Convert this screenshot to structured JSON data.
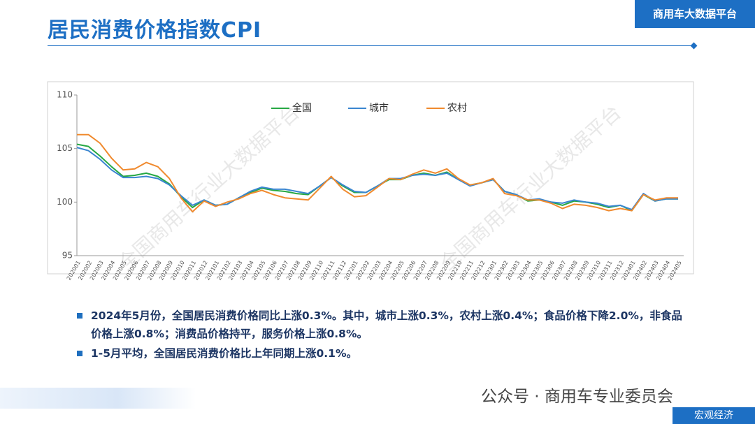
{
  "header": {
    "title": "居民消费价格指数CPI",
    "platform": "商用车大数据平台"
  },
  "watermark": "全国商用车行业大数据平台",
  "chart_data": {
    "type": "line",
    "categories": [
      "202001",
      "202002",
      "202003",
      "202004",
      "202005",
      "202006",
      "202007",
      "202008",
      "202009",
      "202010",
      "202011",
      "202012",
      "202101",
      "202102",
      "202103",
      "202104",
      "202105",
      "202106",
      "202107",
      "202108",
      "202109",
      "202110",
      "202111",
      "202112",
      "202201",
      "202202",
      "202203",
      "202204",
      "202205",
      "202206",
      "202207",
      "202208",
      "202209",
      "202210",
      "202211",
      "202212",
      "202301",
      "202302",
      "202303",
      "202304",
      "202305",
      "202306",
      "202307",
      "202308",
      "202309",
      "202310",
      "202311",
      "202312",
      "202401",
      "202402",
      "202403",
      "202404",
      "202405"
    ],
    "series": [
      {
        "name": "全国",
        "color": "#27a844",
        "values": [
          105.4,
          105.2,
          104.3,
          103.3,
          102.4,
          102.5,
          102.7,
          102.4,
          101.7,
          100.5,
          99.5,
          100.2,
          99.7,
          99.8,
          100.4,
          100.9,
          101.3,
          101.1,
          101.0,
          100.8,
          100.7,
          101.5,
          102.3,
          101.5,
          100.9,
          100.9,
          101.5,
          102.1,
          102.1,
          102.5,
          102.7,
          102.5,
          102.8,
          102.1,
          101.6,
          101.8,
          102.1,
          101.0,
          100.7,
          100.1,
          100.2,
          100.0,
          99.7,
          100.1,
          100.0,
          99.8,
          99.5,
          99.7,
          99.2,
          100.7,
          100.1,
          100.3,
          100.3
        ]
      },
      {
        "name": "城市",
        "color": "#3a86d0",
        "values": [
          105.1,
          104.8,
          104.0,
          103.0,
          102.3,
          102.3,
          102.4,
          102.2,
          101.6,
          100.6,
          99.7,
          100.2,
          99.7,
          99.8,
          100.4,
          101.0,
          101.4,
          101.2,
          101.2,
          101.0,
          100.8,
          101.5,
          102.3,
          101.6,
          101.0,
          100.9,
          101.5,
          102.2,
          102.2,
          102.5,
          102.6,
          102.5,
          102.7,
          102.1,
          101.5,
          101.8,
          102.1,
          101.0,
          100.7,
          100.2,
          100.3,
          100.0,
          99.9,
          100.2,
          100.0,
          99.9,
          99.6,
          99.7,
          99.3,
          100.8,
          100.1,
          100.3,
          100.3
        ]
      },
      {
        "name": "农村",
        "color": "#f08a2e",
        "values": [
          106.3,
          106.3,
          105.5,
          104.1,
          103.0,
          103.1,
          103.7,
          103.3,
          102.2,
          100.4,
          99.1,
          100.1,
          99.6,
          100.0,
          100.3,
          100.8,
          101.1,
          100.7,
          100.4,
          100.3,
          100.2,
          101.3,
          102.4,
          101.2,
          100.5,
          100.6,
          101.4,
          102.2,
          102.1,
          102.6,
          103.0,
          102.7,
          103.1,
          102.2,
          101.6,
          101.8,
          102.2,
          100.8,
          100.6,
          100.2,
          100.2,
          99.9,
          99.4,
          99.8,
          99.7,
          99.5,
          99.2,
          99.4,
          99.2,
          100.7,
          100.2,
          100.4,
          100.4
        ]
      }
    ],
    "ylim": [
      95,
      110
    ],
    "yticks": [
      95,
      100,
      105,
      110
    ],
    "legend": "top"
  },
  "bullets": [
    "2024年5月份，全国居民消费价格同比上涨0.3%。其中，城市上涨0.3%，农村上涨0.4%；食品价格下降2.0%，非食品价格上涨0.8%；消费品价格持平，服务价格上涨0.8%。",
    "1-5月平均，全国居民消费价格比上年同期上涨0.1%。"
  ],
  "footer": {
    "wechat": "公众号 · 商用车专业委员会",
    "tag": "宏观经济"
  }
}
